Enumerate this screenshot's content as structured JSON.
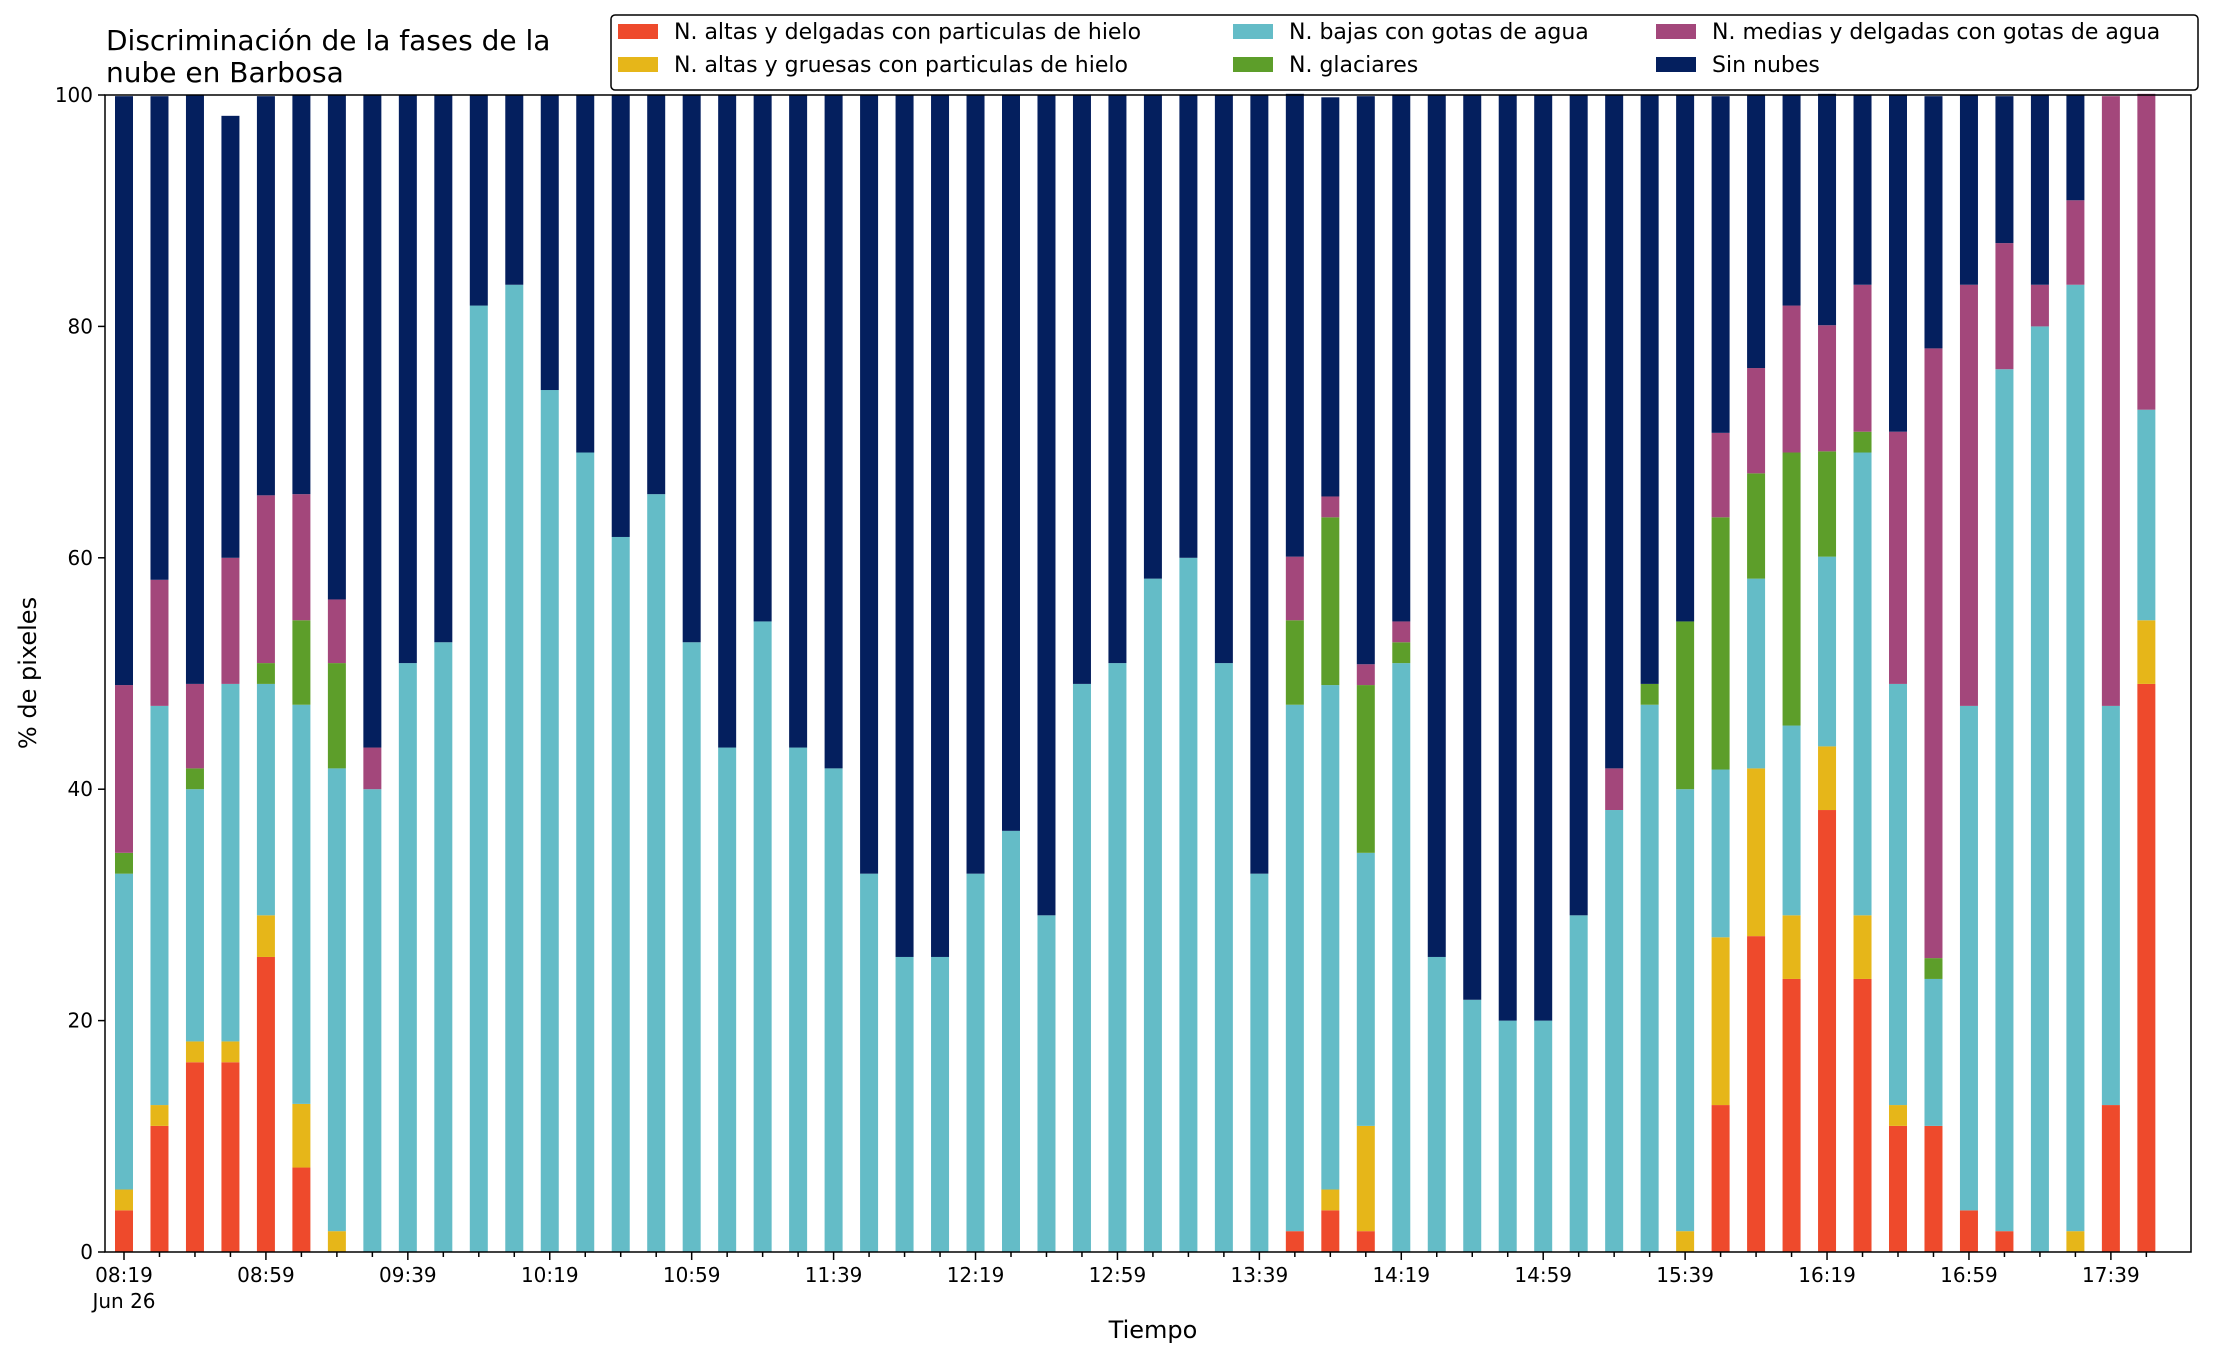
{
  "chart_data": {
    "type": "bar",
    "stacked": true,
    "title_lines": [
      "Discriminación de la fases de la",
      "nube en Barbosa"
    ],
    "xlabel": "Tiempo",
    "ylabel": "% de pixeles",
    "ylim": [
      0,
      100
    ],
    "y_ticks": [
      0,
      20,
      40,
      60,
      80,
      100
    ],
    "x_tick_labels": [
      "08:19",
      "08:59",
      "09:39",
      "10:19",
      "10:59",
      "11:39",
      "12:19",
      "12:59",
      "13:39",
      "14:19",
      "14:59",
      "15:39",
      "16:19",
      "16:59",
      "17:39"
    ],
    "x_tick_sublabel": "Jun 26",
    "grid": false,
    "legend_position": "top-right",
    "categories": [
      "08:19",
      "08:29",
      "08:39",
      "08:49",
      "08:59",
      "09:09",
      "09:19",
      "09:29",
      "09:39",
      "09:49",
      "09:59",
      "10:09",
      "10:19",
      "10:29",
      "10:39",
      "10:49",
      "10:59",
      "11:09",
      "11:19",
      "11:29",
      "11:39",
      "11:49",
      "11:59",
      "12:09",
      "12:19",
      "12:29",
      "12:39",
      "12:49",
      "12:59",
      "13:09",
      "13:19",
      "13:29",
      "13:39",
      "13:49",
      "13:59",
      "14:09",
      "14:19",
      "14:29",
      "14:39",
      "14:49",
      "14:59",
      "15:09",
      "15:19",
      "15:29",
      "15:39",
      "15:49",
      "15:59",
      "16:09",
      "16:19",
      "16:29",
      "16:39",
      "16:49",
      "16:59",
      "17:09",
      "17:19",
      "17:29",
      "17:39",
      "17:49"
    ],
    "series": [
      {
        "name": "N. altas y delgadas con particulas de hielo",
        "color": "#ee4a2c",
        "values": [
          3.6,
          10.9,
          16.4,
          16.4,
          25.5,
          7.3,
          0,
          0,
          0,
          0,
          0,
          0,
          0,
          0,
          0,
          0,
          0,
          0,
          0,
          0,
          0,
          0,
          0,
          0,
          0,
          0,
          0,
          0,
          0,
          0,
          0,
          0,
          0,
          1.8,
          3.6,
          1.8,
          0,
          0,
          0,
          0,
          0,
          0,
          0,
          0,
          0,
          12.7,
          27.3,
          23.6,
          38.2,
          23.6,
          10.9,
          10.9,
          3.6,
          1.8,
          0,
          0,
          12.7,
          49.1
        ]
      },
      {
        "name": "N. altas y gruesas con particulas de hielo",
        "color": "#e6b619",
        "values": [
          1.8,
          1.8,
          1.8,
          1.8,
          3.6,
          5.5,
          1.8,
          0,
          0,
          0,
          0,
          0,
          0,
          0,
          0,
          0,
          0,
          0,
          0,
          0,
          0,
          0,
          0,
          0,
          0,
          0,
          0,
          0,
          0,
          0,
          0,
          0,
          0,
          0,
          1.8,
          9.1,
          0,
          0,
          0,
          0,
          0,
          0,
          0,
          0,
          1.8,
          14.5,
          14.5,
          5.5,
          5.5,
          5.5,
          1.8,
          0,
          0,
          0,
          0,
          1.8,
          0,
          5.5
        ]
      },
      {
        "name": "N. bajas con gotas de agua",
        "color": "#64bcc7",
        "values": [
          27.3,
          34.5,
          21.8,
          30.9,
          20.0,
          34.5,
          40.0,
          40.0,
          50.9,
          52.7,
          81.8,
          83.6,
          74.5,
          69.1,
          61.8,
          65.5,
          52.7,
          43.6,
          54.5,
          43.6,
          41.8,
          32.7,
          25.5,
          25.5,
          32.7,
          36.4,
          29.1,
          49.1,
          50.9,
          58.2,
          60.0,
          50.9,
          32.7,
          45.5,
          43.6,
          23.6,
          50.9,
          25.5,
          21.8,
          20.0,
          20.0,
          29.1,
          38.2,
          47.3,
          38.2,
          14.5,
          16.4,
          16.4,
          16.4,
          40.0,
          36.4,
          12.7,
          43.6,
          74.5,
          80.0,
          81.8,
          34.5,
          18.2
        ]
      },
      {
        "name": "N. glaciares",
        "color": "#5d9e2a",
        "values": [
          1.8,
          0,
          1.8,
          0,
          1.8,
          7.3,
          9.1,
          0,
          0,
          0,
          0,
          0,
          0,
          0,
          0,
          0,
          0,
          0,
          0,
          0,
          0,
          0,
          0,
          0,
          0,
          0,
          0,
          0,
          0,
          0,
          0,
          0,
          0,
          7.3,
          14.5,
          14.5,
          1.8,
          0,
          0,
          0,
          0,
          0,
          0,
          1.8,
          14.5,
          21.8,
          9.1,
          23.6,
          9.1,
          1.8,
          0,
          1.8,
          0,
          0,
          0,
          0,
          0,
          0
        ]
      },
      {
        "name": "N. medias y delgadas con gotas de agua",
        "color": "#a3477b",
        "values": [
          14.5,
          10.9,
          7.3,
          10.9,
          14.5,
          10.9,
          5.5,
          3.6,
          0,
          0,
          0,
          0,
          0,
          0,
          0,
          0,
          0,
          0,
          0,
          0,
          0,
          0,
          0,
          0,
          0,
          0,
          0,
          0,
          0,
          0,
          0,
          0,
          0,
          5.5,
          1.8,
          1.8,
          1.8,
          0,
          0,
          0,
          0,
          0,
          3.6,
          0,
          0,
          7.3,
          9.1,
          12.7,
          10.9,
          12.7,
          21.8,
          52.7,
          36.4,
          10.9,
          3.6,
          7.3,
          52.7,
          27.3
        ]
      },
      {
        "name": "Sin nubes",
        "color": "#041f5e",
        "values": [
          50.9,
          41.8,
          50.9,
          38.2,
          34.5,
          34.5,
          43.6,
          56.4,
          49.1,
          47.3,
          18.2,
          16.4,
          25.5,
          30.9,
          38.2,
          34.5,
          47.3,
          56.4,
          45.5,
          56.4,
          58.2,
          67.3,
          74.5,
          74.5,
          67.3,
          63.6,
          70.9,
          50.9,
          49.1,
          41.8,
          40.0,
          49.1,
          67.3,
          40.0,
          34.5,
          49.1,
          45.5,
          74.5,
          78.2,
          80.0,
          80.0,
          70.9,
          58.2,
          50.9,
          45.5,
          29.1,
          23.6,
          18.2,
          20.0,
          16.4,
          29.1,
          21.8,
          16.4,
          12.7,
          16.4,
          9.1,
          0,
          0
        ]
      }
    ]
  }
}
